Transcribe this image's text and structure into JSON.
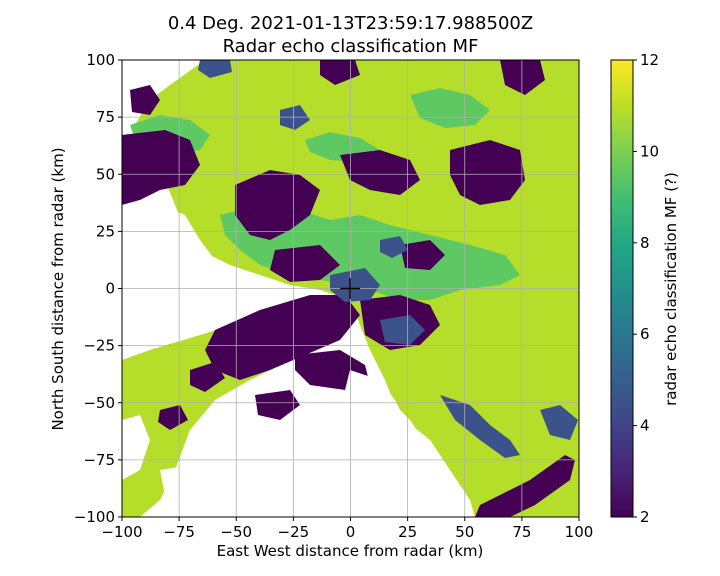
{
  "chart_data": {
    "type": "heatmap",
    "title": "0.4 Deg. 2021-01-13T23:59:17.988500Z",
    "subtitle": "Radar echo classification MF",
    "xlabel": "East West distance from radar (km)",
    "ylabel": "North South distance from radar (km)",
    "xlim": [
      -100,
      100
    ],
    "ylim": [
      -100,
      100
    ],
    "xticks": [
      -100,
      -75,
      -50,
      -25,
      0,
      25,
      50,
      75,
      100
    ],
    "yticks": [
      -100,
      -75,
      -50,
      -25,
      0,
      25,
      50,
      75,
      100
    ],
    "grid": true,
    "radar_location": [
      0,
      0
    ],
    "colorbar": {
      "label": "radar echo classification MF (?)",
      "range": [
        2,
        12
      ],
      "ticks": [
        2,
        4,
        6,
        8,
        10,
        12
      ],
      "colormap": "viridis"
    },
    "dominant_values": {
      "background_class": 11,
      "near_radar_class": 10,
      "clutter_class": 2
    },
    "colors": {
      "class_2": "#440154",
      "class_4": "#3b528b",
      "class_10": "#5ec962",
      "class_11": "#b5de2b",
      "class_12": "#fde725"
    }
  }
}
